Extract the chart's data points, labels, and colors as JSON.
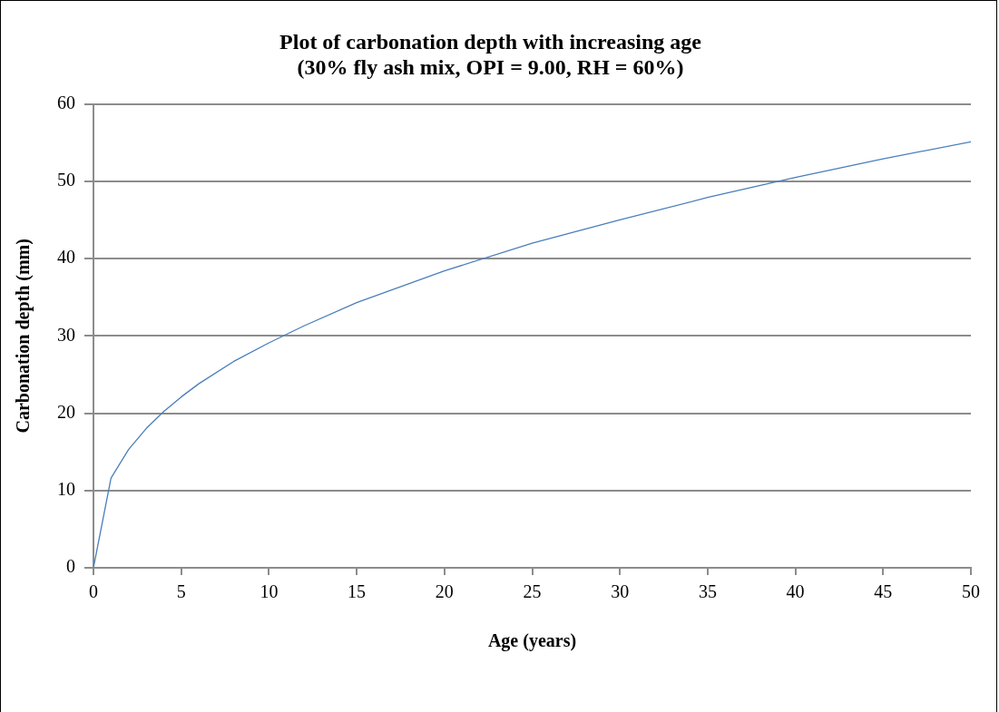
{
  "chart_data": {
    "type": "line",
    "title": "Plot of carbonation depth with increasing age\n(30% fly ash mix, OPI = 9.00, RH = 60%)",
    "xlabel": "Age (years)",
    "ylabel": "Carbonation depth (mm)",
    "x": [
      0,
      1,
      2,
      3,
      4,
      5,
      6,
      8,
      10,
      12,
      15,
      20,
      25,
      30,
      35,
      40,
      45,
      50
    ],
    "series": [
      {
        "color": "#4a7ebb",
        "values": [
          0,
          11.6,
          15.3,
          18,
          20.2,
          22.1,
          23.8,
          26.7,
          29.1,
          31.3,
          34.3,
          38.4,
          42,
          45,
          47.9,
          50.5,
          52.9,
          55.1
        ]
      }
    ],
    "xlim": [
      0,
      50
    ],
    "xticks": [
      0,
      5,
      10,
      15,
      20,
      25,
      30,
      35,
      40,
      45,
      50
    ],
    "ylim": [
      0,
      60
    ],
    "yticks": [
      0,
      10,
      20,
      30,
      40,
      50,
      60
    ],
    "grid": "y",
    "legend": false,
    "marker": "none",
    "line_style": "solid"
  }
}
